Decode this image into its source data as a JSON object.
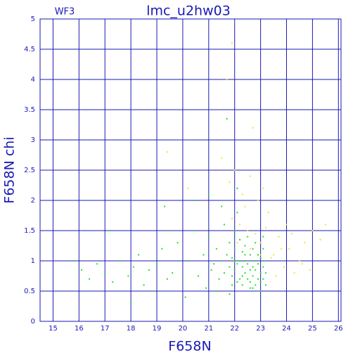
{
  "chart_data": {
    "type": "scatter",
    "title": "lmc_u2hw03",
    "subtitle": "WF3",
    "x_label": "F658N",
    "y_label": "F658N chi",
    "xlim": [
      14.5,
      26.1
    ],
    "ylim": [
      0,
      5
    ],
    "xticks": [
      15,
      16,
      17,
      18,
      19,
      20,
      21,
      22,
      23,
      24,
      25,
      26
    ],
    "yticks": [
      0,
      0.5,
      1,
      1.5,
      2,
      2.5,
      3,
      3.5,
      4,
      4.5,
      5
    ],
    "grid": true,
    "axis_color": "#1a1ab4",
    "series": [
      {
        "color": "#22e022",
        "x": [
          15.8,
          16.1,
          16.4,
          16.7,
          17.0,
          17.3,
          17.6,
          17.9,
          18.1,
          18.3,
          18.5,
          18.7,
          18.9,
          19.0,
          19.2,
          19.4,
          19.6,
          19.8,
          20.0,
          20.2,
          20.4,
          20.6,
          20.8,
          20.9,
          21.0,
          21.1,
          21.2,
          21.3,
          21.4,
          21.5,
          21.6,
          21.6,
          21.7,
          21.7,
          21.8,
          21.8,
          21.9,
          21.9,
          22.0,
          22.0,
          22.0,
          22.1,
          22.1,
          22.1,
          22.2,
          22.2,
          22.2,
          22.3,
          22.3,
          22.3,
          22.4,
          22.4,
          22.4,
          22.5,
          22.5,
          22.5,
          22.6,
          22.6,
          22.6,
          22.7,
          22.7,
          22.7,
          22.8,
          22.8,
          22.8,
          22.9,
          22.9,
          22.9,
          23.0,
          23.0,
          23.0,
          23.1,
          23.1,
          23.1,
          23.2,
          23.2,
          23.2,
          20.5,
          19.3,
          17.2,
          18.0,
          21.5,
          22.1,
          21.0,
          20.1,
          19.5,
          21.3,
          22.6,
          23.0,
          21.8,
          22.0,
          22.4,
          22.8,
          23.1,
          21.9,
          22.3,
          22.7
        ],
        "values": [
          1.0,
          0.85,
          0.7,
          0.95,
          0.8,
          0.65,
          1.0,
          0.75,
          0.9,
          1.1,
          0.6,
          0.85,
          0.5,
          0.95,
          1.2,
          0.7,
          0.8,
          1.3,
          0.65,
          1.0,
          1.5,
          0.75,
          1.1,
          0.55,
          1.4,
          0.85,
          0.95,
          1.2,
          0.7,
          1.0,
          1.6,
          0.8,
          3.35,
          1.1,
          0.9,
          1.3,
          0.75,
          1.05,
          1.5,
          0.85,
          1.2,
          0.65,
          0.95,
          1.8,
          1.0,
          0.7,
          1.35,
          0.9,
          1.15,
          0.6,
          1.0,
          0.8,
          1.25,
          0.7,
          0.95,
          1.4,
          0.85,
          1.1,
          0.65,
          0.9,
          1.2,
          0.75,
          1.0,
          0.6,
          0.85,
          1.1,
          0.7,
          0.95,
          0.8,
          1.05,
          0.65,
          0.9,
          0.7,
          1.2,
          0.8,
          0.6,
          1.0,
          2.0,
          1.9,
          1.5,
          0.3,
          1.9,
          2.2,
          2.1,
          0.4,
          1.5,
          0.5,
          0.55,
          0.5,
          0.45,
          1.0,
          1.1,
          1.3,
          1.4,
          0.6,
          0.75,
          0.55
        ]
      },
      {
        "color": "#e8e830",
        "x": [
          19.4,
          21.7,
          21.9,
          22.7,
          22.0,
          21.5,
          20.2,
          22.6,
          23.1,
          21.9,
          22.2,
          22.5,
          22.8,
          23.0,
          23.3,
          23.5,
          23.7,
          23.9,
          24.1,
          24.3,
          24.5,
          24.7,
          24.9,
          25.0,
          25.3,
          25.5,
          24.0,
          23.6,
          23.4,
          22.4,
          22.9,
          22.1,
          22.6,
          23.2,
          24.6,
          24.2,
          23.8,
          22.3,
          21.8,
          23.0
        ],
        "values": [
          2.8,
          4.0,
          4.6,
          3.2,
          2.5,
          2.7,
          2.2,
          2.4,
          2.2,
          1.7,
          1.6,
          1.5,
          1.45,
          1.3,
          1.8,
          1.1,
          1.4,
          0.9,
          1.2,
          0.8,
          1.0,
          1.3,
          0.85,
          1.5,
          1.35,
          1.6,
          1.6,
          0.75,
          1.05,
          1.9,
          2.0,
          1.3,
          1.2,
          1.55,
          0.95,
          1.45,
          1.2,
          2.1,
          2.3,
          1.1
        ]
      }
    ]
  }
}
